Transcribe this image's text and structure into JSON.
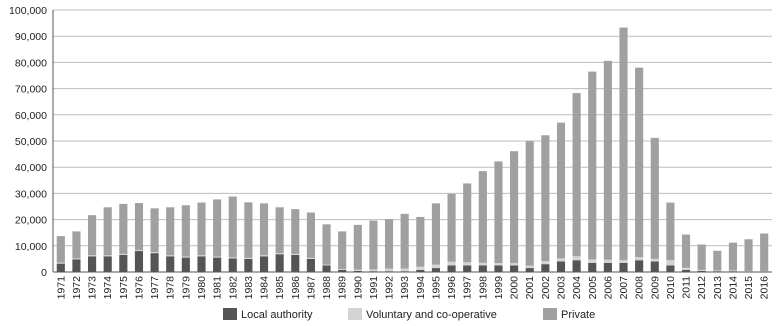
{
  "chart_data": {
    "type": "bar",
    "stacked": true,
    "title": "",
    "xlabel": "",
    "ylabel": "",
    "ylim": [
      0,
      100000
    ],
    "yticks": [
      0,
      10000,
      20000,
      30000,
      40000,
      50000,
      60000,
      70000,
      80000,
      90000,
      100000
    ],
    "ytick_labels": [
      "0",
      "10,000",
      "20,000",
      "30,000",
      "40,000",
      "50,000",
      "60,000",
      "70,000",
      "80,000",
      "90,000",
      "100,000"
    ],
    "grid": "horizontal",
    "legend_position": "bottom",
    "categories": [
      "1971",
      "1972",
      "1973",
      "1974",
      "1975",
      "1976",
      "1977",
      "1978",
      "1979",
      "1980",
      "1981",
      "1982",
      "1983",
      "1984",
      "1985",
      "1986",
      "1987",
      "1988",
      "1989",
      "1990",
      "1991",
      "1992",
      "1993",
      "1994",
      "1995",
      "1996",
      "1997",
      "1998",
      "1999",
      "2000",
      "2001",
      "2002",
      "2003",
      "2004",
      "2005",
      "2006",
      "2007",
      "2008",
      "2009",
      "2010",
      "2011",
      "2012",
      "2013",
      "2014",
      "2015",
      "2016"
    ],
    "series": [
      {
        "name": "Local authority",
        "color": "#555555",
        "values": [
          3200,
          4800,
          6000,
          6000,
          6500,
          8000,
          7200,
          6000,
          5500,
          6000,
          5500,
          5200,
          5000,
          6000,
          6800,
          6500,
          5000,
          2500,
          800,
          400,
          300,
          300,
          300,
          800,
          1500,
          2500,
          2500,
          2500,
          2500,
          2500,
          1500,
          3000,
          4000,
          4500,
          3500,
          3500,
          3500,
          4500,
          4000,
          2500,
          800,
          400,
          300,
          300,
          200,
          200
        ]
      },
      {
        "name": "Voluntary and co-operative",
        "color": "#d4d4d4",
        "values": [
          400,
          400,
          400,
          400,
          400,
          400,
          400,
          400,
          400,
          400,
          400,
          400,
          400,
          400,
          400,
          400,
          400,
          300,
          300,
          500,
          700,
          1000,
          1000,
          1200,
          1300,
          1400,
          1200,
          1000,
          900,
          900,
          900,
          1200,
          1200,
          1500,
          1300,
          1200,
          1000,
          1200,
          1000,
          2000,
          800,
          400,
          300,
          300,
          200,
          200
        ]
      },
      {
        "name": "Private",
        "color": "#a0a0a0",
        "values": [
          10100,
          10300,
          15300,
          18300,
          19100,
          17900,
          16700,
          18300,
          19600,
          20100,
          21800,
          23200,
          21200,
          19800,
          17500,
          17100,
          17300,
          15400,
          14400,
          17100,
          18600,
          18900,
          20900,
          19000,
          23400,
          25900,
          30100,
          35000,
          38800,
          42700,
          47500,
          48000,
          51800,
          62300,
          71700,
          75900,
          88800,
          72300,
          46200,
          22000,
          12700,
          9700,
          7500,
          10600,
          12100,
          14300
        ]
      }
    ]
  }
}
